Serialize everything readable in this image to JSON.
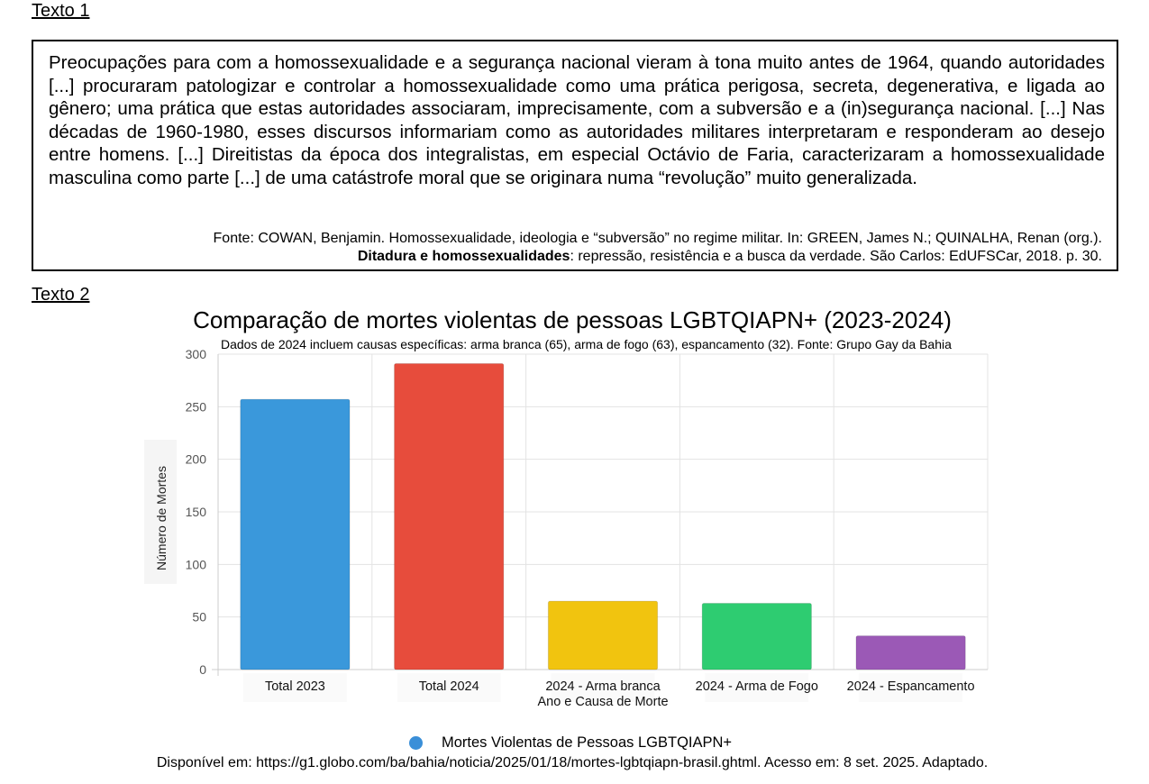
{
  "text1": {
    "heading": "Texto 1",
    "quote": "Preocupações para com a homossexualidade e a segurança nacional vieram à tona muito antes de 1964, quando autoridades [...] procuraram patologizar e controlar a homossexualidade como uma prática perigosa, secreta, degenerativa, e ligada ao gênero; uma prática que estas autoridades associaram, imprecisamente, com a subversão e a (in)segurança nacional. [...] Nas décadas de 1960-1980, esses discursos informariam como as autoridades militares interpretaram e responderam ao desejo entre homens. [...] Direitistas da época dos integralistas, em especial Octávio de Faria, caracterizaram a homossexualidade masculina como parte [...] de uma catástrofe moral que se originara numa “revolução” muito generalizada.",
    "source_line1": "Fonte: COWAN, Benjamin. Homossexualidade, ideologia e “subversão” no regime militar. In: GREEN, James N.; QUINALHA, Renan (org.).",
    "source_bold": "Ditadura e homossexualidades",
    "source_line2_rest": ": repressão, resistência e a busca da verdade. São Carlos: EdUFSCar, 2018. p. 30."
  },
  "text2": {
    "heading": "Texto 2",
    "available": "Disponível em: https://g1.globo.com/ba/bahia/noticia/2025/01/18/mortes-lgbtqiapn-brasil.ghtml. Acesso em: 8 set. 2025. Adaptado."
  },
  "chart_data": {
    "type": "bar",
    "title": "Comparação de mortes violentas de pessoas LGBTQIAPN+ (2023-2024)",
    "subtitle": "Dados de 2024 incluem causas específicas: arma branca (65), arma de fogo (63), espancamento (32). Fonte: Grupo Gay da Bahia",
    "xlabel": "Ano e Causa de Morte",
    "ylabel": "Número de Mortes",
    "ylim": [
      0,
      300
    ],
    "yticks": [
      0,
      50,
      100,
      150,
      200,
      250,
      300
    ],
    "grid": true,
    "legend_position": "bottom",
    "categories": [
      "Total 2023",
      "Total 2024",
      "2024 - Arma branca",
      "2024 - Arma de Fogo",
      "2024 - Espancamento"
    ],
    "series": [
      {
        "name": "Mortes Violentas de Pessoas LGBTQIAPN+",
        "values": [
          257,
          291,
          65,
          63,
          32
        ],
        "colors": [
          "#3a98db",
          "#e74c3c",
          "#f1c40f",
          "#2ecc71",
          "#9b59b6"
        ]
      }
    ],
    "legend_color": "#3a8fd8"
  }
}
